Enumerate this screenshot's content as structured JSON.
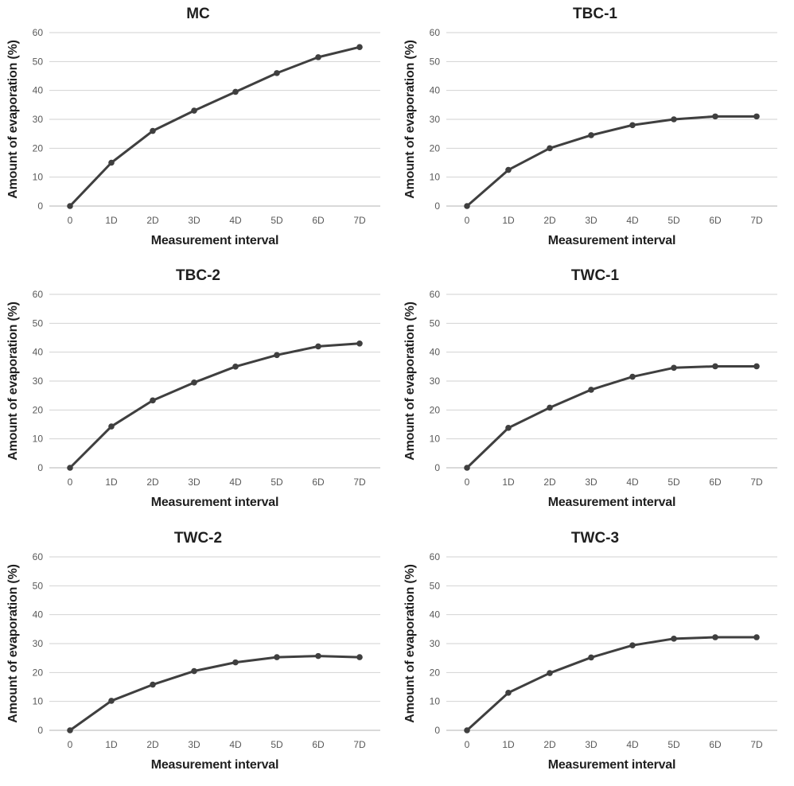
{
  "style": {
    "background_color": "#ffffff",
    "line_color": "#3f3f3f",
    "marker_color": "#3f3f3f",
    "gridline_color": "#d2d2d2",
    "baseline_color": "#b3b3b3",
    "tick_label_color": "#595959",
    "title_color": "#1f1f1f"
  },
  "chart_data": [
    {
      "type": "line",
      "title": "MC",
      "xlabel": "Measurement interval",
      "ylabel": "Amount of evaporation (%)",
      "categories": [
        "0",
        "1D",
        "2D",
        "3D",
        "4D",
        "5D",
        "6D",
        "7D"
      ],
      "values": [
        0,
        15,
        26,
        33,
        39.5,
        46,
        51.5,
        55
      ],
      "ylim": [
        0,
        60
      ],
      "yticks": [
        0,
        10,
        20,
        30,
        40,
        50,
        60
      ],
      "grid": true,
      "legend": "none"
    },
    {
      "type": "line",
      "title": "TBC-1",
      "xlabel": "Measurement interval",
      "ylabel": "Amount of evaporation (%)",
      "categories": [
        "0",
        "1D",
        "2D",
        "3D",
        "4D",
        "5D",
        "6D",
        "7D"
      ],
      "values": [
        0,
        12.5,
        20,
        24.5,
        28,
        30,
        31,
        31
      ],
      "ylim": [
        0,
        60
      ],
      "yticks": [
        0,
        10,
        20,
        30,
        40,
        50,
        60
      ],
      "grid": true,
      "legend": "none"
    },
    {
      "type": "line",
      "title": "TBC-2",
      "xlabel": "Measurement interval",
      "ylabel": "Amount of evaporation (%)",
      "categories": [
        "0",
        "1D",
        "2D",
        "3D",
        "4D",
        "5D",
        "6D",
        "7D"
      ],
      "values": [
        0,
        14.3,
        23.3,
        29.5,
        35,
        39,
        42,
        43
      ],
      "ylim": [
        0,
        60
      ],
      "yticks": [
        0,
        10,
        20,
        30,
        40,
        50,
        60
      ],
      "grid": true,
      "legend": "none"
    },
    {
      "type": "line",
      "title": "TWC-1",
      "xlabel": "Measurement interval",
      "ylabel": "Amount of evaporation (%)",
      "categories": [
        "0",
        "1D",
        "2D",
        "3D",
        "4D",
        "5D",
        "6D",
        "7D"
      ],
      "values": [
        0,
        13.8,
        20.8,
        27,
        31.5,
        34.6,
        35.1,
        35.1
      ],
      "ylim": [
        0,
        60
      ],
      "yticks": [
        0,
        10,
        20,
        30,
        40,
        50,
        60
      ],
      "grid": true,
      "legend": "none"
    },
    {
      "type": "line",
      "title": "TWC-2",
      "xlabel": "Measurement interval",
      "ylabel": "Amount of evaporation (%)",
      "categories": [
        "0",
        "1D",
        "2D",
        "3D",
        "4D",
        "5D",
        "6D",
        "7D"
      ],
      "values": [
        0,
        10.2,
        15.8,
        20.5,
        23.5,
        25.3,
        25.7,
        25.3
      ],
      "ylim": [
        0,
        60
      ],
      "yticks": [
        0,
        10,
        20,
        30,
        40,
        50,
        60
      ],
      "grid": true,
      "legend": "none"
    },
    {
      "type": "line",
      "title": "TWC-3",
      "xlabel": "Measurement interval",
      "ylabel": "Amount of evaporation (%)",
      "categories": [
        "0",
        "1D",
        "2D",
        "3D",
        "4D",
        "5D",
        "6D",
        "7D"
      ],
      "values": [
        0,
        13,
        19.8,
        25.2,
        29.4,
        31.7,
        32.2,
        32.2
      ],
      "ylim": [
        0,
        60
      ],
      "yticks": [
        0,
        10,
        20,
        30,
        40,
        50,
        60
      ],
      "grid": true,
      "legend": "none"
    }
  ]
}
